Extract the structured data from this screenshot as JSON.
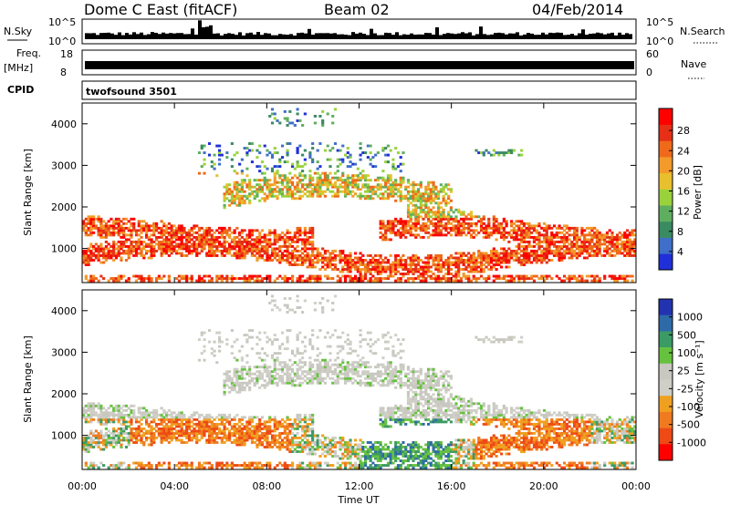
{
  "header": {
    "station": "Dome C East (fitACF)",
    "beam": "Beam 02",
    "date": "04/Feb/2014"
  },
  "strip_labels": {
    "nsky": "N.Sky",
    "nsearch": "N.Search",
    "freq": "Freq.",
    "freq_unit": "[MHz]",
    "nave": "Nave",
    "cpid": "CPID",
    "noise_top": "10^5",
    "noise_bottom": "10^0",
    "freq_top": "18",
    "freq_bottom": "8",
    "nave_top": "60",
    "nave_bottom": "0",
    "program": "twofsound 3501"
  },
  "colors": {
    "power_scale": [
      "#2030d8",
      "#3f6fc8",
      "#3a8a62",
      "#5fae5f",
      "#9ad23c",
      "#e8c02e",
      "#f29a2a",
      "#ef6a1a",
      "#e53017",
      "#ff0000"
    ],
    "velocity_scale": [
      "#2233b0",
      "#2f6aa8",
      "#3c9a65",
      "#66c23e",
      "#c8c8c0",
      "#cfcfc7",
      "#f0a020",
      "#f07a20",
      "#ee4a15",
      "#ff0000"
    ]
  },
  "chart_data": [
    {
      "type": "heatmap",
      "name": "power",
      "ylabel": "Slant Range [km]",
      "xlabel": "Time UT",
      "x_ticks": [
        "00:00",
        "04:00",
        "08:00",
        "12:00",
        "16:00",
        "20:00",
        "00:00"
      ],
      "y_ticks": [
        1000,
        2000,
        3000,
        4000
      ],
      "ylim": [
        180,
        4500
      ],
      "xlim_hours": [
        0,
        24
      ],
      "colorbar": {
        "label": "Power [dB]",
        "ticks": [
          "4",
          "8",
          "12",
          "16",
          "20",
          "24",
          "28"
        ],
        "range": [
          0,
          30
        ]
      }
    },
    {
      "type": "heatmap",
      "name": "velocity",
      "ylabel": "Slant Range [km]",
      "xlabel": "Time UT",
      "x_ticks": [
        "00:00",
        "04:00",
        "08:00",
        "12:00",
        "16:00",
        "20:00",
        "00:00"
      ],
      "y_ticks": [
        1000,
        2000,
        3000,
        4000
      ],
      "ylim": [
        180,
        4500
      ],
      "xlim_hours": [
        0,
        24
      ],
      "colorbar": {
        "label": "Velocity [m s⁻¹]",
        "ticks": [
          "1000",
          "500",
          "100",
          "25",
          "-25",
          "-100",
          "-500",
          "-1000"
        ],
        "range": [
          -1000,
          1000
        ]
      }
    }
  ]
}
